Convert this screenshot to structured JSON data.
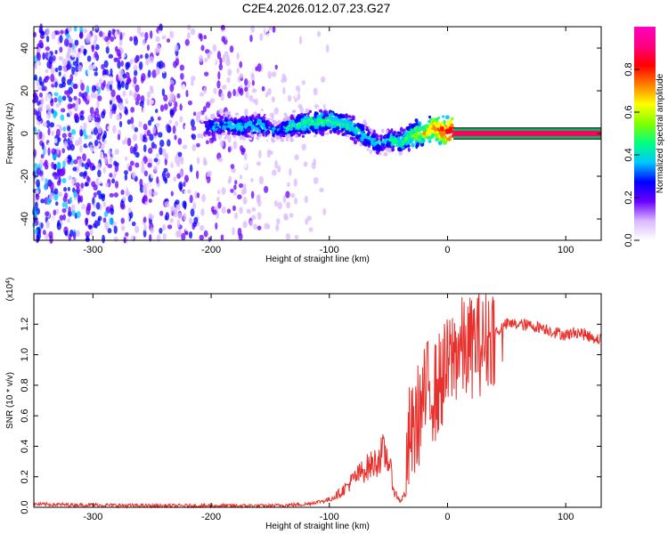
{
  "title": "C2E4.2026.012.07.23.G27",
  "chart_data": [
    {
      "type": "heatmap",
      "xlabel": "Height of straight line (km)",
      "ylabel": "Frequency (Hz)",
      "xlim": [
        -350,
        130
      ],
      "ylim": [
        -50,
        50
      ],
      "x_ticks": [
        -300,
        -200,
        -100,
        0,
        100
      ],
      "x_tick_labels": [
        "-300",
        "-200",
        "-100",
        "0",
        "100"
      ],
      "y_ticks": [
        -40,
        -20,
        0,
        20,
        40
      ],
      "y_tick_labels": [
        "-40",
        "-20",
        "0",
        "20",
        "40"
      ],
      "colorbar": {
        "label": "Normalized spectral amplitude",
        "range": [
          0,
          1
        ],
        "ticks": [
          0.0,
          0.2,
          0.4,
          0.6,
          0.8
        ],
        "tick_labels": [
          "0.0",
          "0.2",
          "0.4",
          "0.6",
          "0.8"
        ],
        "colors": [
          "#ffffff",
          "#d9b8ff",
          "#6a00ff",
          "#0000ff",
          "#00c8ff",
          "#00ff80",
          "#80ff00",
          "#ffff00",
          "#ff8000",
          "#ff0000",
          "#ff0080",
          "#ff00c0"
        ]
      },
      "ridge": {
        "x": [
          -205,
          -190,
          -175,
          -160,
          -145,
          -130,
          -115,
          -100,
          -85,
          -75,
          -65,
          -58,
          -50,
          -40,
          -30,
          -20,
          -12,
          -5,
          5,
          130
        ],
        "y": [
          3,
          4,
          3,
          4,
          1,
          4,
          5,
          6,
          4,
          1,
          -3,
          -5,
          -3,
          -4,
          -1,
          0,
          3,
          1,
          1,
          0
        ],
        "amplitude": [
          0.35,
          0.38,
          0.4,
          0.42,
          0.32,
          0.45,
          0.5,
          0.48,
          0.46,
          0.44,
          0.4,
          0.38,
          0.42,
          0.46,
          0.55,
          0.62,
          0.72,
          0.8,
          0.88,
          0.95
        ]
      },
      "noise_region": [
        -350,
        -120
      ]
    },
    {
      "type": "line",
      "xlabel": "Height of straight line (km)",
      "ylabel": "SNR (10 * v/v)",
      "exponent_label": "(x10",
      "exponent_power": "4",
      "exponent_close": ")",
      "xlim": [
        -350,
        130
      ],
      "ylim": [
        0,
        1.4
      ],
      "x_ticks": [
        -300,
        -200,
        -100,
        0,
        100
      ],
      "x_tick_labels": [
        "-300",
        "-200",
        "-100",
        "0",
        "100"
      ],
      "y_ticks": [
        0.0,
        0.2,
        0.4,
        0.6,
        0.8,
        1.0,
        1.2
      ],
      "y_tick_labels": [
        "0.0",
        "0.2",
        "0.4",
        "0.6",
        "0.8",
        "1.0",
        "1.2"
      ],
      "color": "#e8302c",
      "series": [
        {
          "name": "SNR",
          "x": [
            -350,
            -300,
            -250,
            -200,
            -150,
            -120,
            -100,
            -90,
            -80,
            -70,
            -60,
            -55,
            -50,
            -45,
            -40,
            -35,
            -32,
            -30,
            -25,
            -20,
            -15,
            -10,
            -5,
            0,
            5,
            10,
            15,
            20,
            25,
            30,
            35,
            40,
            45,
            50,
            55,
            60,
            70,
            80,
            90,
            100,
            110,
            120,
            130
          ],
          "y": [
            0.02,
            0.015,
            0.01,
            0.01,
            0.01,
            0.02,
            0.05,
            0.1,
            0.18,
            0.25,
            0.3,
            0.36,
            0.32,
            0.1,
            0.04,
            0.1,
            0.5,
            0.45,
            0.6,
            0.7,
            0.8,
            0.75,
            0.85,
            0.9,
            1.0,
            1.05,
            1.02,
            1.05,
            1.1,
            1.05,
            1.12,
            1.15,
            1.17,
            1.2,
            1.2,
            1.2,
            1.19,
            1.18,
            1.15,
            1.13,
            1.15,
            1.12,
            1.1
          ]
        }
      ]
    }
  ]
}
